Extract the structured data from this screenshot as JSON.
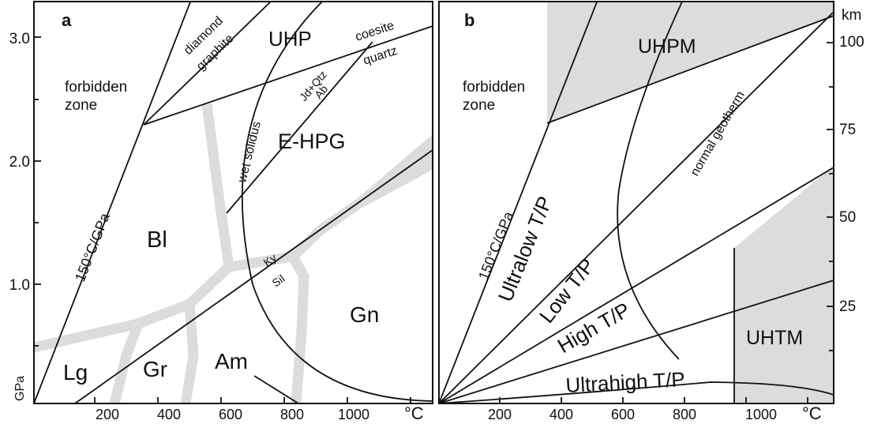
{
  "panel_a": {
    "letter": "a",
    "zones": {
      "forbidden_1": "forbidden",
      "forbidden_2": "zone",
      "uhp": "UHP",
      "ehpg": "E-HPG",
      "bl": "Bl",
      "gn": "Gn",
      "lg": "Lg",
      "gr": "Gr",
      "am": "Am"
    },
    "reactions": {
      "diamond": "diamond",
      "graphite": "graphite",
      "coesite": "coesite",
      "quartz": "quartz",
      "jd_qtz": "Jd+Qtz",
      "ab": "Ab",
      "wet_solidus": "wet solidus",
      "ky": "Ky",
      "sil": "Sil",
      "gradient": "150°C/GPa"
    },
    "axis": {
      "y_ticks": [
        "3.0",
        "2.0",
        "1.0"
      ],
      "y_unit": "GPa",
      "x_ticks": [
        "200",
        "400",
        "600",
        "800",
        "1000"
      ],
      "x_unit": "°C"
    }
  },
  "panel_b": {
    "letter": "b",
    "zones": {
      "forbidden_1": "forbidden",
      "forbidden_2": "zone",
      "uhpm": "UHPM",
      "uhtm": "UHTM",
      "ultralow": "Ultralow T/P",
      "low": "Low T/P",
      "high": "High T/P",
      "ultrahigh": "Ultrahigh T/P",
      "normal_geotherm": "normal geotherm",
      "gradient": "150°C/GPa"
    },
    "axis": {
      "x_ticks": [
        "200",
        "400",
        "600",
        "800",
        "1000"
      ],
      "x_unit": "°C",
      "km_unit": "km",
      "km_ticks": [
        "100",
        "75",
        "50",
        "25"
      ]
    }
  }
}
